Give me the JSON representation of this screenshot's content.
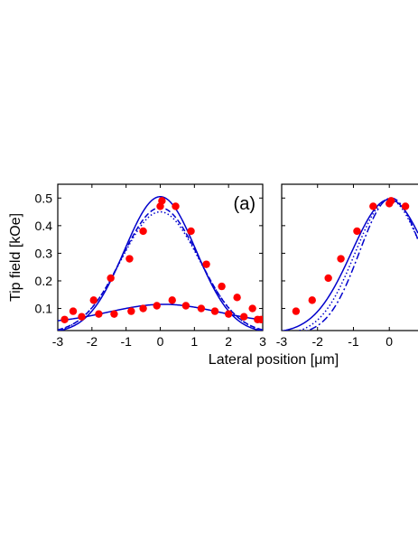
{
  "figure": {
    "ylabel": "Tip field [kOe]",
    "xlabel": "Lateral position [μm]"
  },
  "chart_data": [
    {
      "type": "scatter",
      "panel_label": "(a)",
      "ylabel": "Tip field [kOe]",
      "xlabel": "Lateral position [μm]",
      "xlim": [
        -3,
        3
      ],
      "ylim": [
        0.02,
        0.55
      ],
      "x_ticks": [
        -3,
        -2,
        -1,
        0,
        1,
        2,
        3
      ],
      "y_ticks": [
        0.1,
        0.2,
        0.3,
        0.4,
        0.5
      ],
      "series": [
        {
          "style": "markers",
          "color": "#ff0000",
          "x": [
            -2.55,
            -1.95,
            -1.45,
            -0.9,
            -0.5,
            0.0,
            0.05,
            0.45,
            0.9,
            1.35,
            1.8,
            2.25,
            2.7,
            2.95
          ],
          "y": [
            0.09,
            0.13,
            0.21,
            0.28,
            0.38,
            0.47,
            0.49,
            0.47,
            0.38,
            0.26,
            0.18,
            0.14,
            0.1,
            0.06
          ]
        },
        {
          "style": "markers",
          "color": "#ff0000",
          "x": [
            -2.8,
            -2.3,
            -1.8,
            -1.35,
            -0.85,
            -0.5,
            -0.1,
            0.35,
            0.75,
            1.2,
            1.6,
            2.0,
            2.45,
            2.85
          ],
          "y": [
            0.06,
            0.07,
            0.08,
            0.08,
            0.09,
            0.1,
            0.11,
            0.13,
            0.11,
            0.1,
            0.09,
            0.08,
            0.07,
            0.06
          ]
        },
        {
          "style": "solid",
          "color": "#0000cc",
          "func": "gauss",
          "amp": 0.495,
          "center": 0.0,
          "sigma": 1.05,
          "offset": 0.01
        },
        {
          "style": "dashed",
          "color": "#0000cc",
          "func": "gauss",
          "amp": 0.455,
          "center": 0.0,
          "sigma": 1.12,
          "offset": 0.01
        },
        {
          "style": "dotted",
          "color": "#0000cc",
          "func": "gauss",
          "amp": 0.445,
          "center": 0.0,
          "sigma": 1.15,
          "offset": 0.005
        },
        {
          "style": "solid",
          "color": "#0000cc",
          "func": "gauss",
          "amp": 0.07,
          "center": 0.1,
          "sigma": 1.6,
          "offset": 0.045
        }
      ]
    },
    {
      "type": "scatter",
      "xlim": [
        -3,
        0.8
      ],
      "ylim": [
        0.02,
        0.55
      ],
      "x_ticks": [
        -3,
        -2,
        -1,
        0
      ],
      "y_ticks": [],
      "series": [
        {
          "style": "markers",
          "color": "#ff0000",
          "x": [
            -2.6,
            -2.15,
            -1.7,
            -1.35,
            -0.9,
            -0.45,
            0.0,
            0.05,
            0.45
          ],
          "y": [
            0.09,
            0.13,
            0.21,
            0.28,
            0.38,
            0.47,
            0.48,
            0.49,
            0.47
          ]
        },
        {
          "style": "solid",
          "color": "#0000cc",
          "func": "gauss",
          "amp": 0.485,
          "center": 0.0,
          "sigma": 1.05,
          "offset": 0.01
        },
        {
          "style": "dotted",
          "color": "#0000cc",
          "func": "gauss",
          "amp": 0.49,
          "center": 0.0,
          "sigma": 0.95,
          "offset": 0.005
        },
        {
          "style": "dashdot",
          "color": "#0000cc",
          "func": "gauss",
          "amp": 0.495,
          "center": 0.05,
          "sigma": 0.88,
          "offset": 0.005
        }
      ]
    }
  ]
}
